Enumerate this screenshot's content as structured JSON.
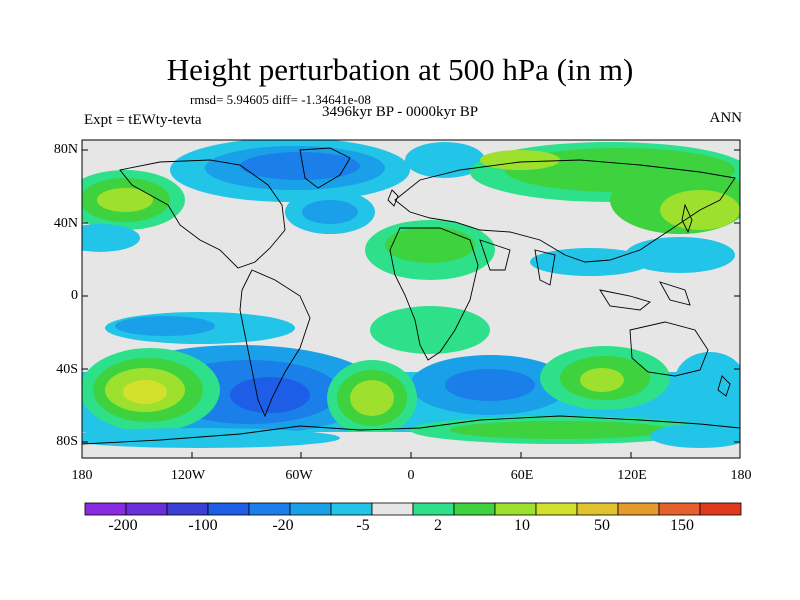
{
  "title": "Height perturbation at 500 hPa (in m)",
  "stats": "rmsd= 5.94605 diff= -1.34641e-08",
  "period": "3496kyr BP - 0000kyr BP",
  "experiment": "Expt = tEWty-tevta",
  "season": "ANN",
  "lat_labels": [
    "80N",
    "40N",
    "0",
    "40S",
    "80S"
  ],
  "lon_labels": [
    "180",
    "120W",
    "60W",
    "0",
    "60E",
    "120E",
    "180"
  ],
  "colorbar": {
    "labels": [
      "-200",
      "-100",
      "-20",
      "-5",
      "2",
      "10",
      "50",
      "150"
    ],
    "colors": [
      "#8a2be2",
      "#6a2fd6",
      "#3a3fd6",
      "#1e5ee6",
      "#1a7fe8",
      "#1aa0e8",
      "#22c4e8",
      "#e6e6e6",
      "#2ee08a",
      "#3ed23e",
      "#9ee02e",
      "#d4e02e",
      "#e0c22e",
      "#e69a2e",
      "#e6602e",
      "#e03a1e"
    ]
  },
  "chart_data": {
    "type": "heatmap",
    "title": "Height perturbation at 500 hPa (in m)",
    "units": "m",
    "projection": "cylindrical equidistant",
    "lon_range": [
      -180,
      180
    ],
    "lat_range": [
      -90,
      90
    ],
    "contour_levels": [
      -200,
      -100,
      -20,
      -5,
      2,
      10,
      50,
      150
    ],
    "approx_features": [
      {
        "region": "North Atlantic / Arctic",
        "sign": "negative",
        "approx_value": -20
      },
      {
        "region": "Eurasia / North Pacific",
        "sign": "positive",
        "approx_value": 10
      },
      {
        "region": "North Africa",
        "sign": "positive",
        "approx_value": 5
      },
      {
        "region": "Southern Ocean Pacific sector (50S,150W)",
        "sign": "positive",
        "approx_value": 50
      },
      {
        "region": "Southern Ocean near South America (55S,60W)",
        "sign": "negative",
        "approx_value": -20
      },
      {
        "region": "South Atlantic (50S,15W)",
        "sign": "positive",
        "approx_value": 50
      },
      {
        "region": "South Indian Ocean (45S,90E)",
        "sign": "positive",
        "approx_value": 20
      },
      {
        "region": "Antarctic coast",
        "sign": "negative",
        "approx_value": -10
      }
    ]
  }
}
